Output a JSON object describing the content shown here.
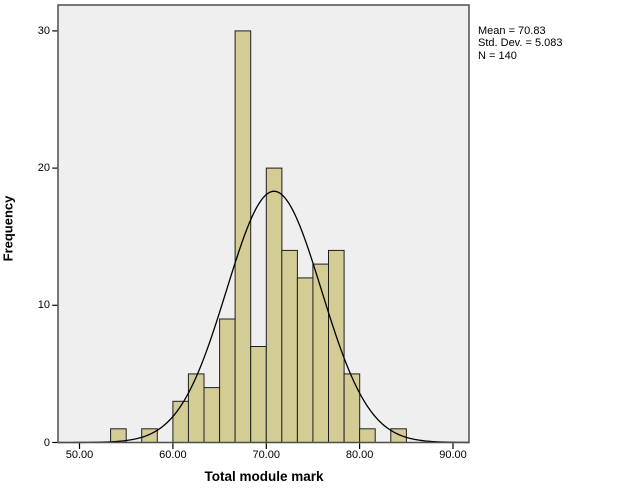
{
  "chart_data": {
    "type": "bar",
    "subtype": "histogram",
    "title": "",
    "xlabel": "Total module mark",
    "ylabel": "Frequency",
    "x_tick_labels": [
      "50.00",
      "60.00",
      "70.00",
      "80.00",
      "90.00"
    ],
    "x_tick_values": [
      50,
      60,
      70,
      80,
      90
    ],
    "y_tick_labels": [
      "0",
      "10",
      "20",
      "30"
    ],
    "y_tick_values": [
      0,
      10,
      20,
      30
    ],
    "xlim": [
      47.7,
      91.7
    ],
    "ylim": [
      0,
      31.9
    ],
    "grid": false,
    "legend_position": "none",
    "bin_width": 1.6667,
    "first_bin_start": 53.333,
    "bin_counts": [
      1,
      0,
      1,
      0,
      3,
      5,
      4,
      9,
      30,
      7,
      20,
      14,
      12,
      13,
      14,
      5,
      1,
      0,
      1
    ],
    "normal_curve": {
      "mean": 70.83,
      "std_dev": 5.083,
      "n": 140
    },
    "annotation": {
      "line1": "Mean = 70.83",
      "line2": "Std. Dev. = 5.083",
      "line3": "N = 140"
    },
    "colors": {
      "bar_fill": "#d3cc94",
      "bar_border": "#1f1f1f",
      "plot_background": "#efefef",
      "plot_frame": "#4d4d4d",
      "curve": "#000000",
      "tick": "#000000",
      "text": "#000000",
      "page_background": "#ffffff"
    }
  }
}
